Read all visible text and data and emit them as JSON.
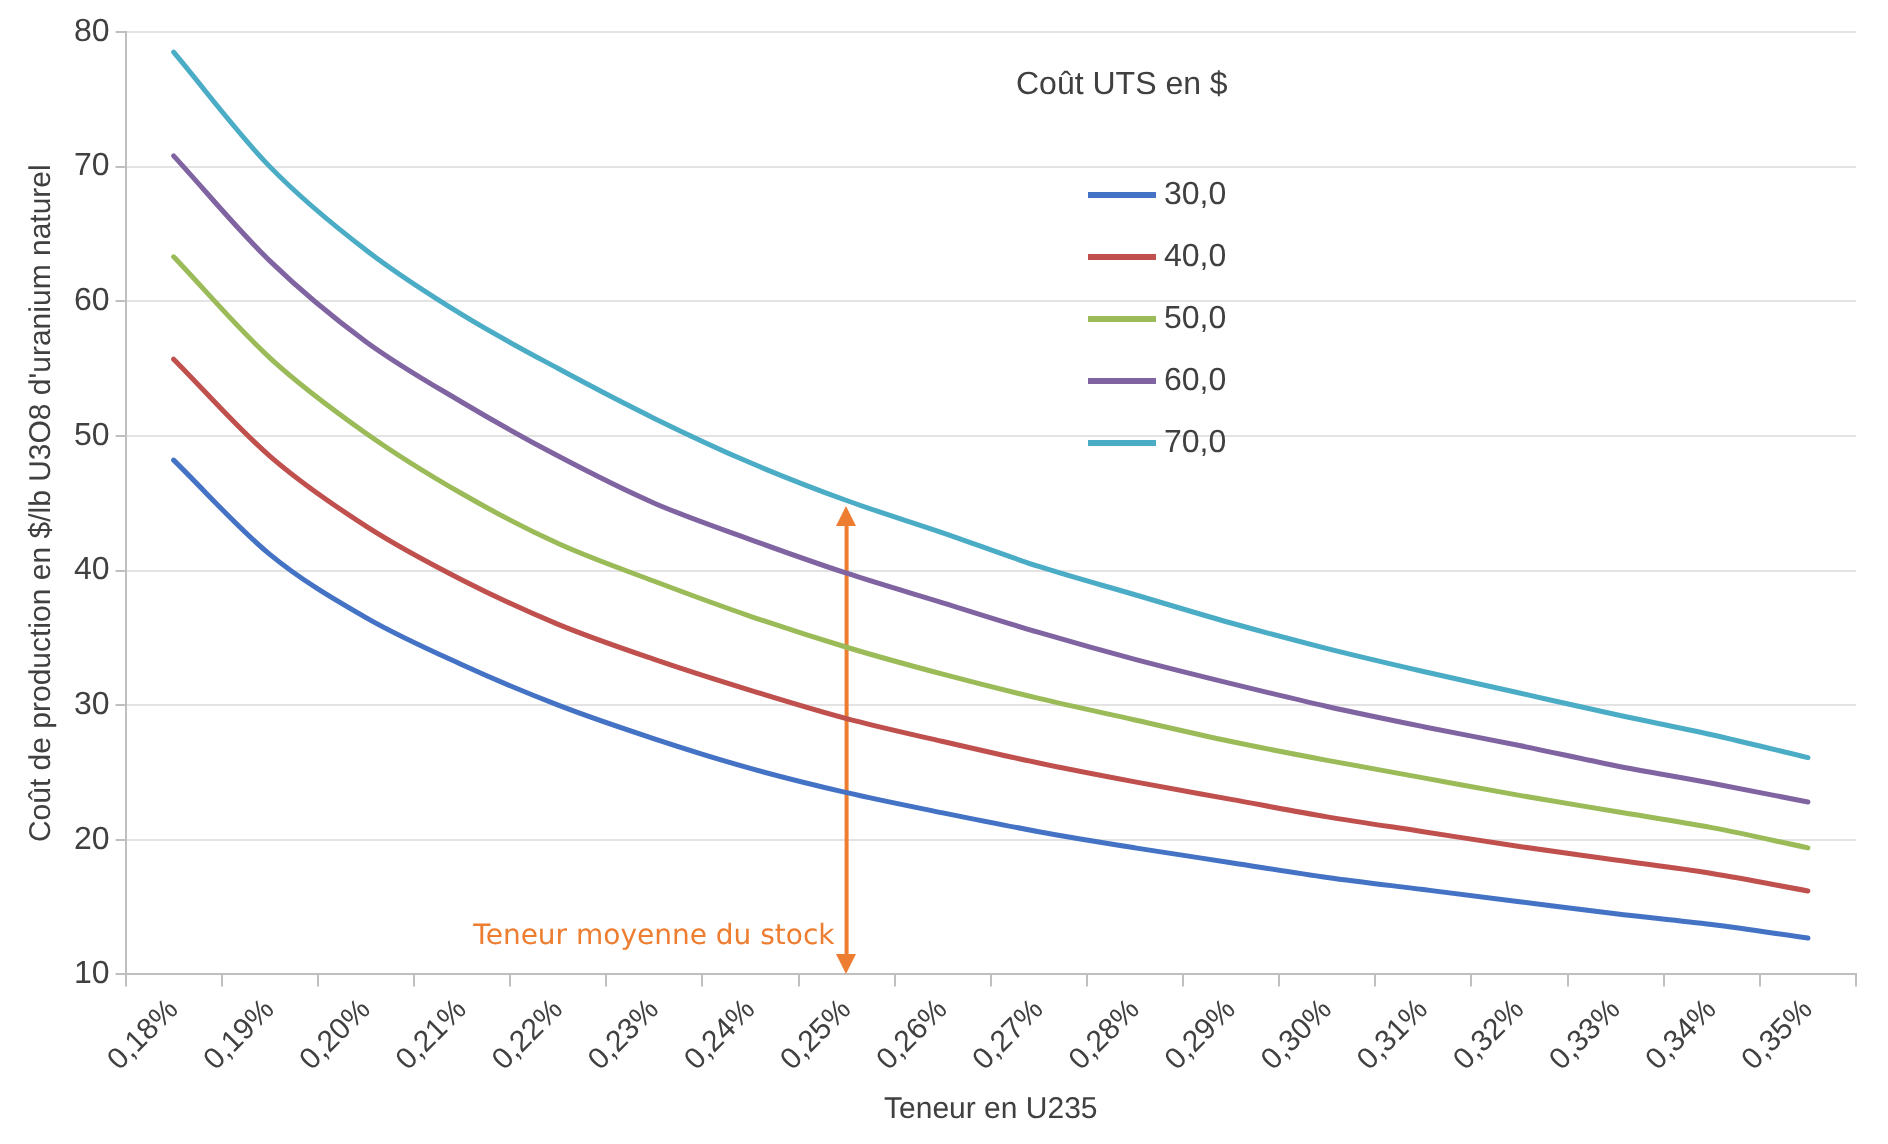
{
  "chart_data": {
    "type": "line",
    "xlabel": "Teneur en U235",
    "ylabel": "Coût de production en $/lb U3O8 d'uranium naturel",
    "legend_title": "Coût UTS en $",
    "legend": "top right",
    "grid": "y",
    "marker": "none",
    "line_style": "solid",
    "categories": [
      "0,18%",
      "0,19%",
      "0,20%",
      "0,21%",
      "0,22%",
      "0,23%",
      "0,24%",
      "0,25%",
      "0,26%",
      "0,27%",
      "0,28%",
      "0,29%",
      "0,30%",
      "0,31%",
      "0,32%",
      "0,33%",
      "0,34%",
      "0,35%"
    ],
    "ylim": [
      10,
      80
    ],
    "yticks": [
      10,
      20,
      30,
      40,
      50,
      60,
      70,
      80
    ],
    "series": [
      {
        "name": "30,0",
        "color": "#4472c4",
        "values": [
          48.2,
          41.2,
          36.5,
          33,
          30,
          27.5,
          25.3,
          23.5,
          22,
          20.6,
          19.4,
          18.3,
          17.2,
          16.3,
          15.4,
          14.5,
          13.7,
          12.7
        ]
      },
      {
        "name": "40,0",
        "color": "#c0504d",
        "values": [
          55.7,
          48.5,
          43.3,
          39.3,
          36,
          33.4,
          31.1,
          29,
          27.3,
          25.7,
          24.3,
          23,
          21.7,
          20.6,
          19.5,
          18.5,
          17.5,
          16.2
        ]
      },
      {
        "name": "50,0",
        "color": "#9bbb59",
        "values": [
          63.3,
          55.8,
          50.2,
          45.7,
          42,
          39.2,
          36.6,
          34.3,
          32.3,
          30.5,
          28.9,
          27.3,
          25.9,
          24.6,
          23.3,
          22.1,
          20.9,
          19.4
        ]
      },
      {
        "name": "60,0",
        "color": "#8064a2",
        "values": [
          70.8,
          63,
          57,
          52.5,
          48.5,
          45,
          42.3,
          39.8,
          37.6,
          35.4,
          33.4,
          31.6,
          29.9,
          28.4,
          27,
          25.5,
          24.2,
          22.8
        ]
      },
      {
        "name": "70,0",
        "color": "#4bacc6",
        "values": [
          78.5,
          70,
          63.8,
          59,
          55,
          51.3,
          48,
          45.2,
          42.8,
          40.3,
          38.2,
          36.1,
          34.2,
          32.5,
          30.9,
          29.3,
          27.8,
          26.1
        ]
      }
    ],
    "ref_lines": [
      {
        "axis": "x",
        "value": "0,25%",
        "label": "Teneur moyenne du stock",
        "color": "#ed7d31"
      }
    ]
  }
}
